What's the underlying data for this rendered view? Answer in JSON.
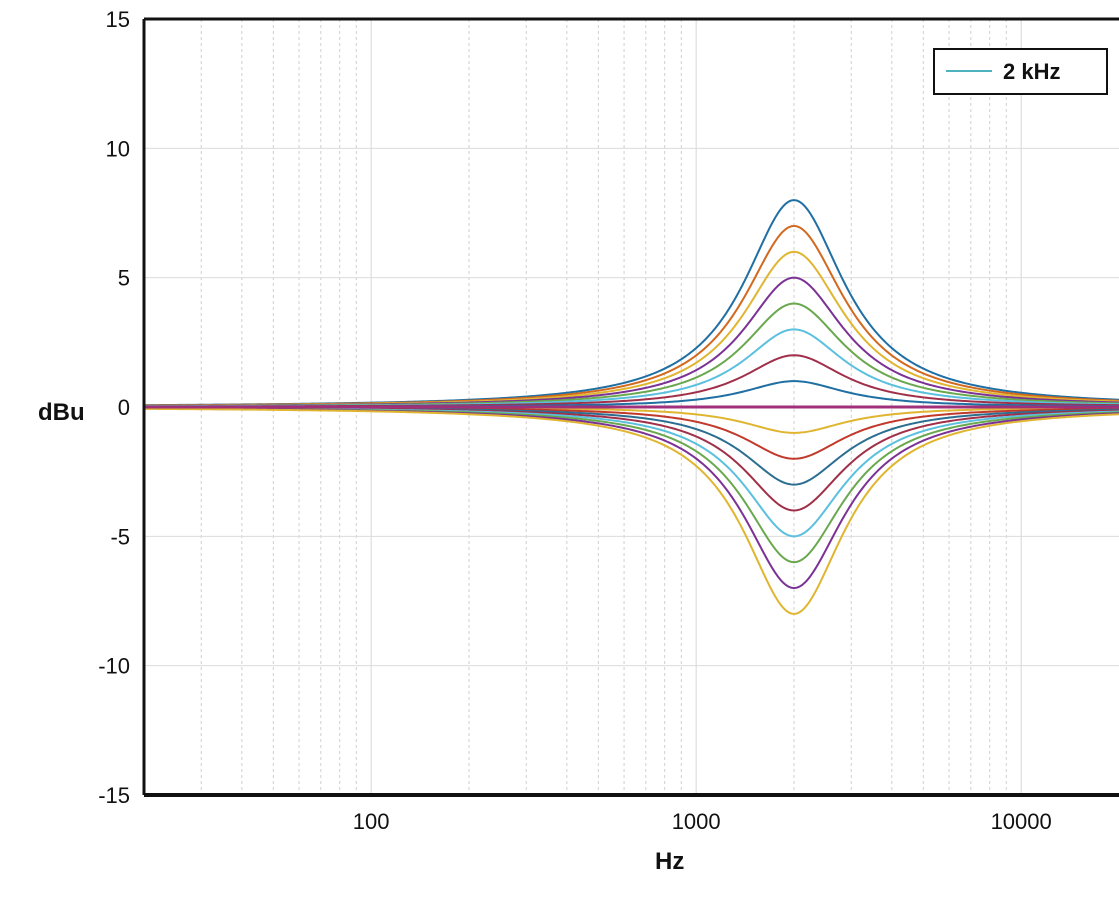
{
  "chart_data": {
    "type": "line",
    "title": "",
    "xlabel": "Hz",
    "ylabel": "dBu",
    "x_scale": "log",
    "xlim": [
      20,
      20000
    ],
    "ylim": [
      -15,
      15
    ],
    "x_ticks": [
      100,
      1000,
      10000
    ],
    "x_tick_labels": [
      "100",
      "1000",
      "10000"
    ],
    "y_ticks": [
      -15,
      -10,
      -5,
      0,
      5,
      10,
      15
    ],
    "y_tick_labels": [
      "-15",
      "-10",
      "-5",
      "0",
      "5",
      "10",
      "15"
    ],
    "grid": true,
    "grid_minor_x": true,
    "legend": {
      "placement": "top-right",
      "entries": [
        {
          "label": "2 kHz",
          "color": "#4fb3bf"
        }
      ]
    },
    "center_frequency_hz": 2000,
    "series": [
      {
        "gain_db": 8,
        "color": "#1f6fa3"
      },
      {
        "gain_db": 7,
        "color": "#d2691e"
      },
      {
        "gain_db": 6,
        "color": "#e0b530"
      },
      {
        "gain_db": 5,
        "color": "#7b3294"
      },
      {
        "gain_db": 4,
        "color": "#6aa84f"
      },
      {
        "gain_db": 3,
        "color": "#5bc0de"
      },
      {
        "gain_db": 2,
        "color": "#a0304a"
      },
      {
        "gain_db": 1,
        "color": "#1f6fa3"
      },
      {
        "gain_db": 0,
        "color": "#d2691e"
      },
      {
        "gain_db": -1,
        "color": "#e0b530"
      },
      {
        "gain_db": -2,
        "color": "#c0392b"
      },
      {
        "gain_db": -3,
        "color": "#2c6e91"
      },
      {
        "gain_db": -4,
        "color": "#a0304a"
      },
      {
        "gain_db": -5,
        "color": "#5bc0de"
      },
      {
        "gain_db": -6,
        "color": "#6aa84f"
      },
      {
        "gain_db": -7,
        "color": "#7b3294"
      },
      {
        "gain_db": -8,
        "color": "#e0b530"
      },
      {
        "gain_db": 0,
        "color": "#a0307a"
      }
    ]
  }
}
